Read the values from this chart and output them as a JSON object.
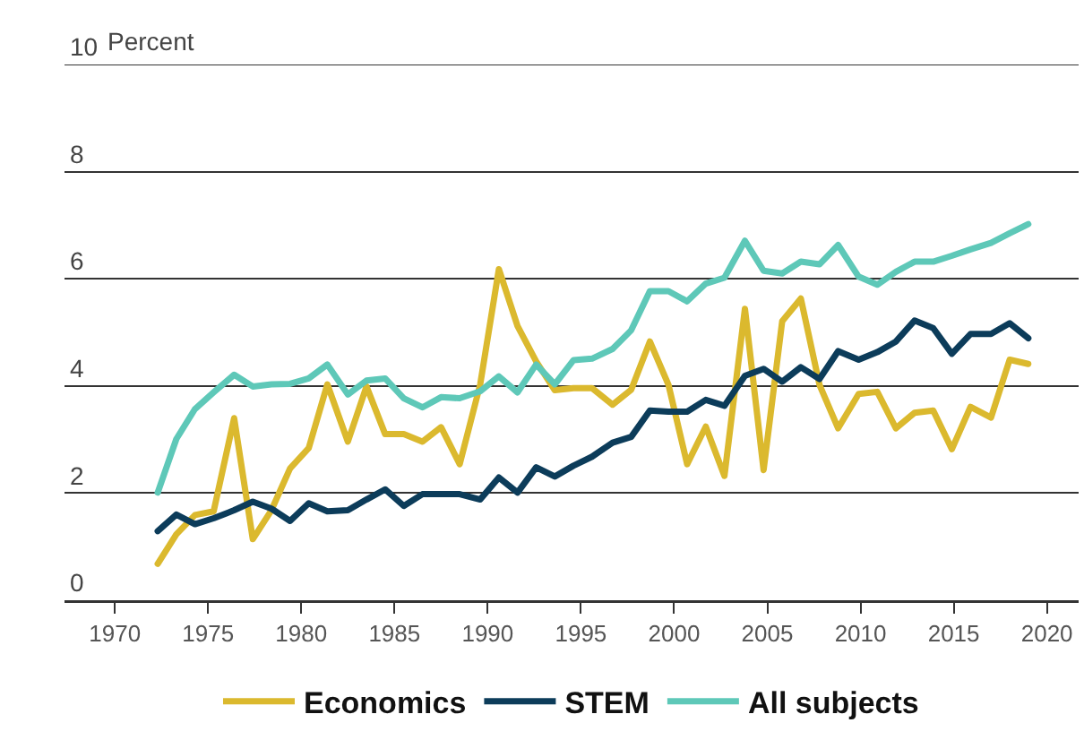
{
  "chart_data": {
    "type": "line",
    "ylabel": "Percent",
    "x": [
      1972.3,
      1973.3,
      1974.3,
      1975.3,
      1976.4,
      1977.4,
      1978.4,
      1979.4,
      1980.4,
      1981.4,
      1982.5,
      1983.5,
      1984.5,
      1985.5,
      1986.5,
      1987.5,
      1988.5,
      1989.6,
      1990.6,
      1991.6,
      1992.6,
      1993.6,
      1994.6,
      1995.6,
      1996.7,
      1997.7,
      1998.7,
      1999.7,
      2000.7,
      2001.7,
      2002.7,
      2003.8,
      2004.8,
      2005.8,
      2006.8,
      2007.8,
      2008.8,
      2009.9,
      2010.9,
      2011.9,
      2012.9,
      2013.9,
      2014.9,
      2015.9,
      2017.0,
      2018.0,
      2019.0
    ],
    "series": [
      {
        "name": "Economics",
        "color": "#dbb92e",
        "values": [
          0.68,
          1.23,
          1.59,
          1.66,
          3.4,
          1.14,
          1.68,
          2.46,
          2.84,
          4.03,
          2.96,
          3.99,
          3.1,
          3.1,
          2.96,
          3.23,
          2.54,
          4.03,
          6.18,
          5.12,
          4.46,
          3.92,
          3.96,
          3.96,
          3.65,
          3.93,
          4.83,
          4.02,
          2.54,
          3.24,
          2.32,
          5.44,
          2.43,
          5.21,
          5.63,
          4.02,
          3.21,
          3.85,
          3.89,
          3.21,
          3.5,
          3.54,
          2.82,
          3.61,
          3.41,
          4.49,
          4.41
        ]
      },
      {
        "name": "STEM",
        "color": "#0c3c5a",
        "values": [
          1.29,
          1.6,
          1.42,
          1.53,
          1.68,
          1.84,
          1.71,
          1.48,
          1.81,
          1.66,
          1.68,
          1.88,
          2.07,
          1.76,
          1.98,
          1.98,
          1.98,
          1.88,
          2.29,
          2.01,
          2.48,
          2.31,
          2.51,
          2.68,
          2.94,
          3.05,
          3.54,
          3.52,
          3.52,
          3.74,
          3.63,
          4.19,
          4.32,
          4.08,
          4.35,
          4.13,
          4.65,
          4.49,
          4.63,
          4.83,
          5.22,
          5.08,
          4.6,
          4.97,
          4.97,
          5.17,
          4.89
        ]
      },
      {
        "name": "All subjects",
        "color": "#5ec8b8",
        "values": [
          2.01,
          3.01,
          3.57,
          3.88,
          4.21,
          3.99,
          4.03,
          4.04,
          4.14,
          4.4,
          3.84,
          4.1,
          4.14,
          3.77,
          3.6,
          3.79,
          3.77,
          3.9,
          4.18,
          3.88,
          4.4,
          4.03,
          4.48,
          4.51,
          4.69,
          5.04,
          5.77,
          5.77,
          5.58,
          5.91,
          6.02,
          6.71,
          6.15,
          6.1,
          6.32,
          6.27,
          6.63,
          6.04,
          5.89,
          6.13,
          6.32,
          6.32,
          6.43,
          6.55,
          6.67,
          6.85,
          7.02
        ]
      }
    ],
    "xlim": [
      1967.3,
      2021.7
    ],
    "xticks": [
      1970,
      1975,
      1980,
      1985,
      1990,
      1995,
      2000,
      2005,
      2010,
      2015,
      2020
    ],
    "ylim": [
      0,
      10
    ],
    "yticks": [
      0,
      2,
      4,
      6,
      8,
      10
    ],
    "grid": "y",
    "legend": "bottom",
    "marker": "none",
    "line_style": "solid"
  }
}
